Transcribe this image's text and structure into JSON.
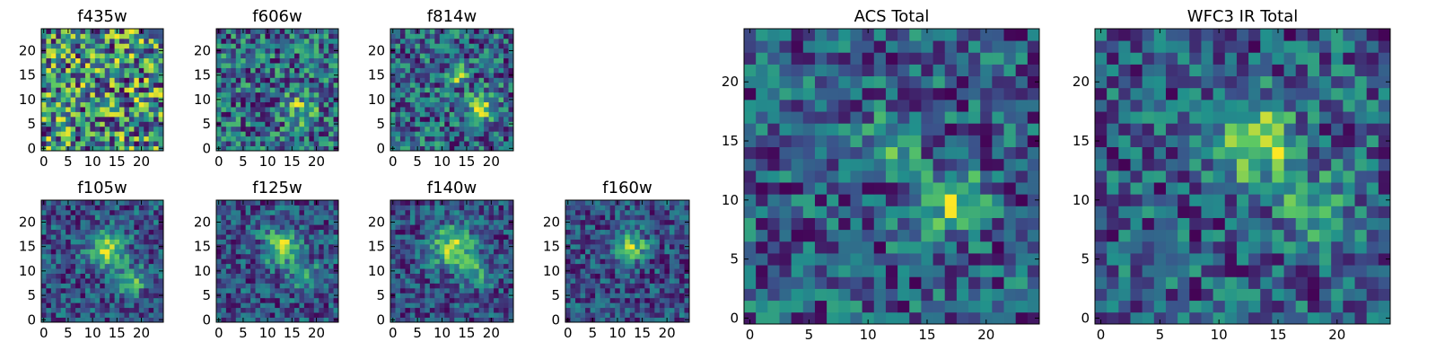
{
  "figure": {
    "colormap": "viridis",
    "colormap_colors": [
      "#440154",
      "#3b528b",
      "#21918c",
      "#5ec962",
      "#fde725"
    ]
  },
  "chart_data": [
    {
      "type": "heatmap",
      "title": "f435w",
      "shape": [
        25,
        25
      ],
      "xlim": [
        0,
        24
      ],
      "ylim": [
        0,
        24
      ],
      "xticks": [
        0,
        5,
        10,
        15,
        20
      ],
      "yticks": [
        0,
        5,
        10,
        15,
        20
      ],
      "description_of_values": "noise-dominated field, no clear source",
      "peaks": []
    },
    {
      "type": "heatmap",
      "title": "f606w",
      "shape": [
        25,
        25
      ],
      "xlim": [
        0,
        24
      ],
      "ylim": [
        0,
        24
      ],
      "xticks": [
        0,
        5,
        10,
        15,
        20
      ],
      "yticks": [
        0,
        5,
        10,
        15,
        20
      ],
      "peaks": [
        {
          "x": 17,
          "y": 8,
          "amp": 0.25,
          "sigma": 2.5
        }
      ]
    },
    {
      "type": "heatmap",
      "title": "f814w",
      "shape": [
        25,
        25
      ],
      "xlim": [
        0,
        24
      ],
      "ylim": [
        0,
        24
      ],
      "xticks": [
        0,
        5,
        10,
        15,
        20
      ],
      "yticks": [
        0,
        5,
        10,
        15,
        20
      ],
      "peaks": [
        {
          "x": 18,
          "y": 8,
          "amp": 0.4,
          "sigma": 2.0
        },
        {
          "x": 13,
          "y": 15,
          "amp": 0.3,
          "sigma": 1.5
        }
      ]
    },
    {
      "type": "heatmap",
      "title": "f105w",
      "shape": [
        25,
        25
      ],
      "xlim": [
        0,
        24
      ],
      "ylim": [
        0,
        24
      ],
      "xticks": [
        0,
        5,
        10,
        15,
        20
      ],
      "yticks": [
        0,
        5,
        10,
        15,
        20
      ],
      "peaks": [
        {
          "x": 13,
          "y": 15,
          "amp": 0.6,
          "sigma": 2.5
        },
        {
          "x": 18,
          "y": 8,
          "amp": 0.45,
          "sigma": 2.0
        }
      ]
    },
    {
      "type": "heatmap",
      "title": "f125w",
      "shape": [
        25,
        25
      ],
      "xlim": [
        0,
        24
      ],
      "ylim": [
        0,
        24
      ],
      "xticks": [
        0,
        5,
        10,
        15,
        20
      ],
      "yticks": [
        0,
        5,
        10,
        15,
        20
      ],
      "peaks": [
        {
          "x": 13,
          "y": 15,
          "amp": 0.6,
          "sigma": 2.5
        },
        {
          "x": 18,
          "y": 9,
          "amp": 0.3,
          "sigma": 2.0
        }
      ]
    },
    {
      "type": "heatmap",
      "title": "f140w",
      "shape": [
        25,
        25
      ],
      "xlim": [
        0,
        24
      ],
      "ylim": [
        0,
        24
      ],
      "xticks": [
        0,
        5,
        10,
        15,
        20
      ],
      "yticks": [
        0,
        5,
        10,
        15,
        20
      ],
      "peaks": [
        {
          "x": 12,
          "y": 15,
          "amp": 0.6,
          "sigma": 3.0
        },
        {
          "x": 17,
          "y": 10,
          "amp": 0.3,
          "sigma": 2.5
        }
      ]
    },
    {
      "type": "heatmap",
      "title": "f160w",
      "shape": [
        25,
        25
      ],
      "xlim": [
        0,
        24
      ],
      "ylim": [
        0,
        24
      ],
      "xticks": [
        0,
        5,
        10,
        15,
        20
      ],
      "yticks": [
        0,
        5,
        10,
        15,
        20
      ],
      "peaks": [
        {
          "x": 13,
          "y": 15,
          "amp": 0.6,
          "sigma": 2.0
        }
      ]
    },
    {
      "type": "heatmap",
      "title": "ACS Total",
      "shape": [
        25,
        25
      ],
      "xlim": [
        0,
        24
      ],
      "ylim": [
        0,
        24
      ],
      "xticks": [
        0,
        5,
        10,
        15,
        20
      ],
      "yticks": [
        0,
        5,
        10,
        15,
        20
      ],
      "peaks": [
        {
          "x": 17,
          "y": 10,
          "amp": 0.45,
          "sigma": 1.8
        },
        {
          "x": 12,
          "y": 15,
          "amp": 0.35,
          "sigma": 1.5
        }
      ]
    },
    {
      "type": "heatmap",
      "title": "WFC3 IR Total",
      "shape": [
        25,
        25
      ],
      "xlim": [
        0,
        24
      ],
      "ylim": [
        0,
        24
      ],
      "xticks": [
        0,
        5,
        10,
        15,
        20
      ],
      "yticks": [
        0,
        5,
        10,
        15,
        20
      ],
      "peaks": [
        {
          "x": 13,
          "y": 15,
          "amp": 0.6,
          "sigma": 2.2
        },
        {
          "x": 18,
          "y": 9,
          "amp": 0.25,
          "sigma": 2.5
        }
      ]
    }
  ]
}
